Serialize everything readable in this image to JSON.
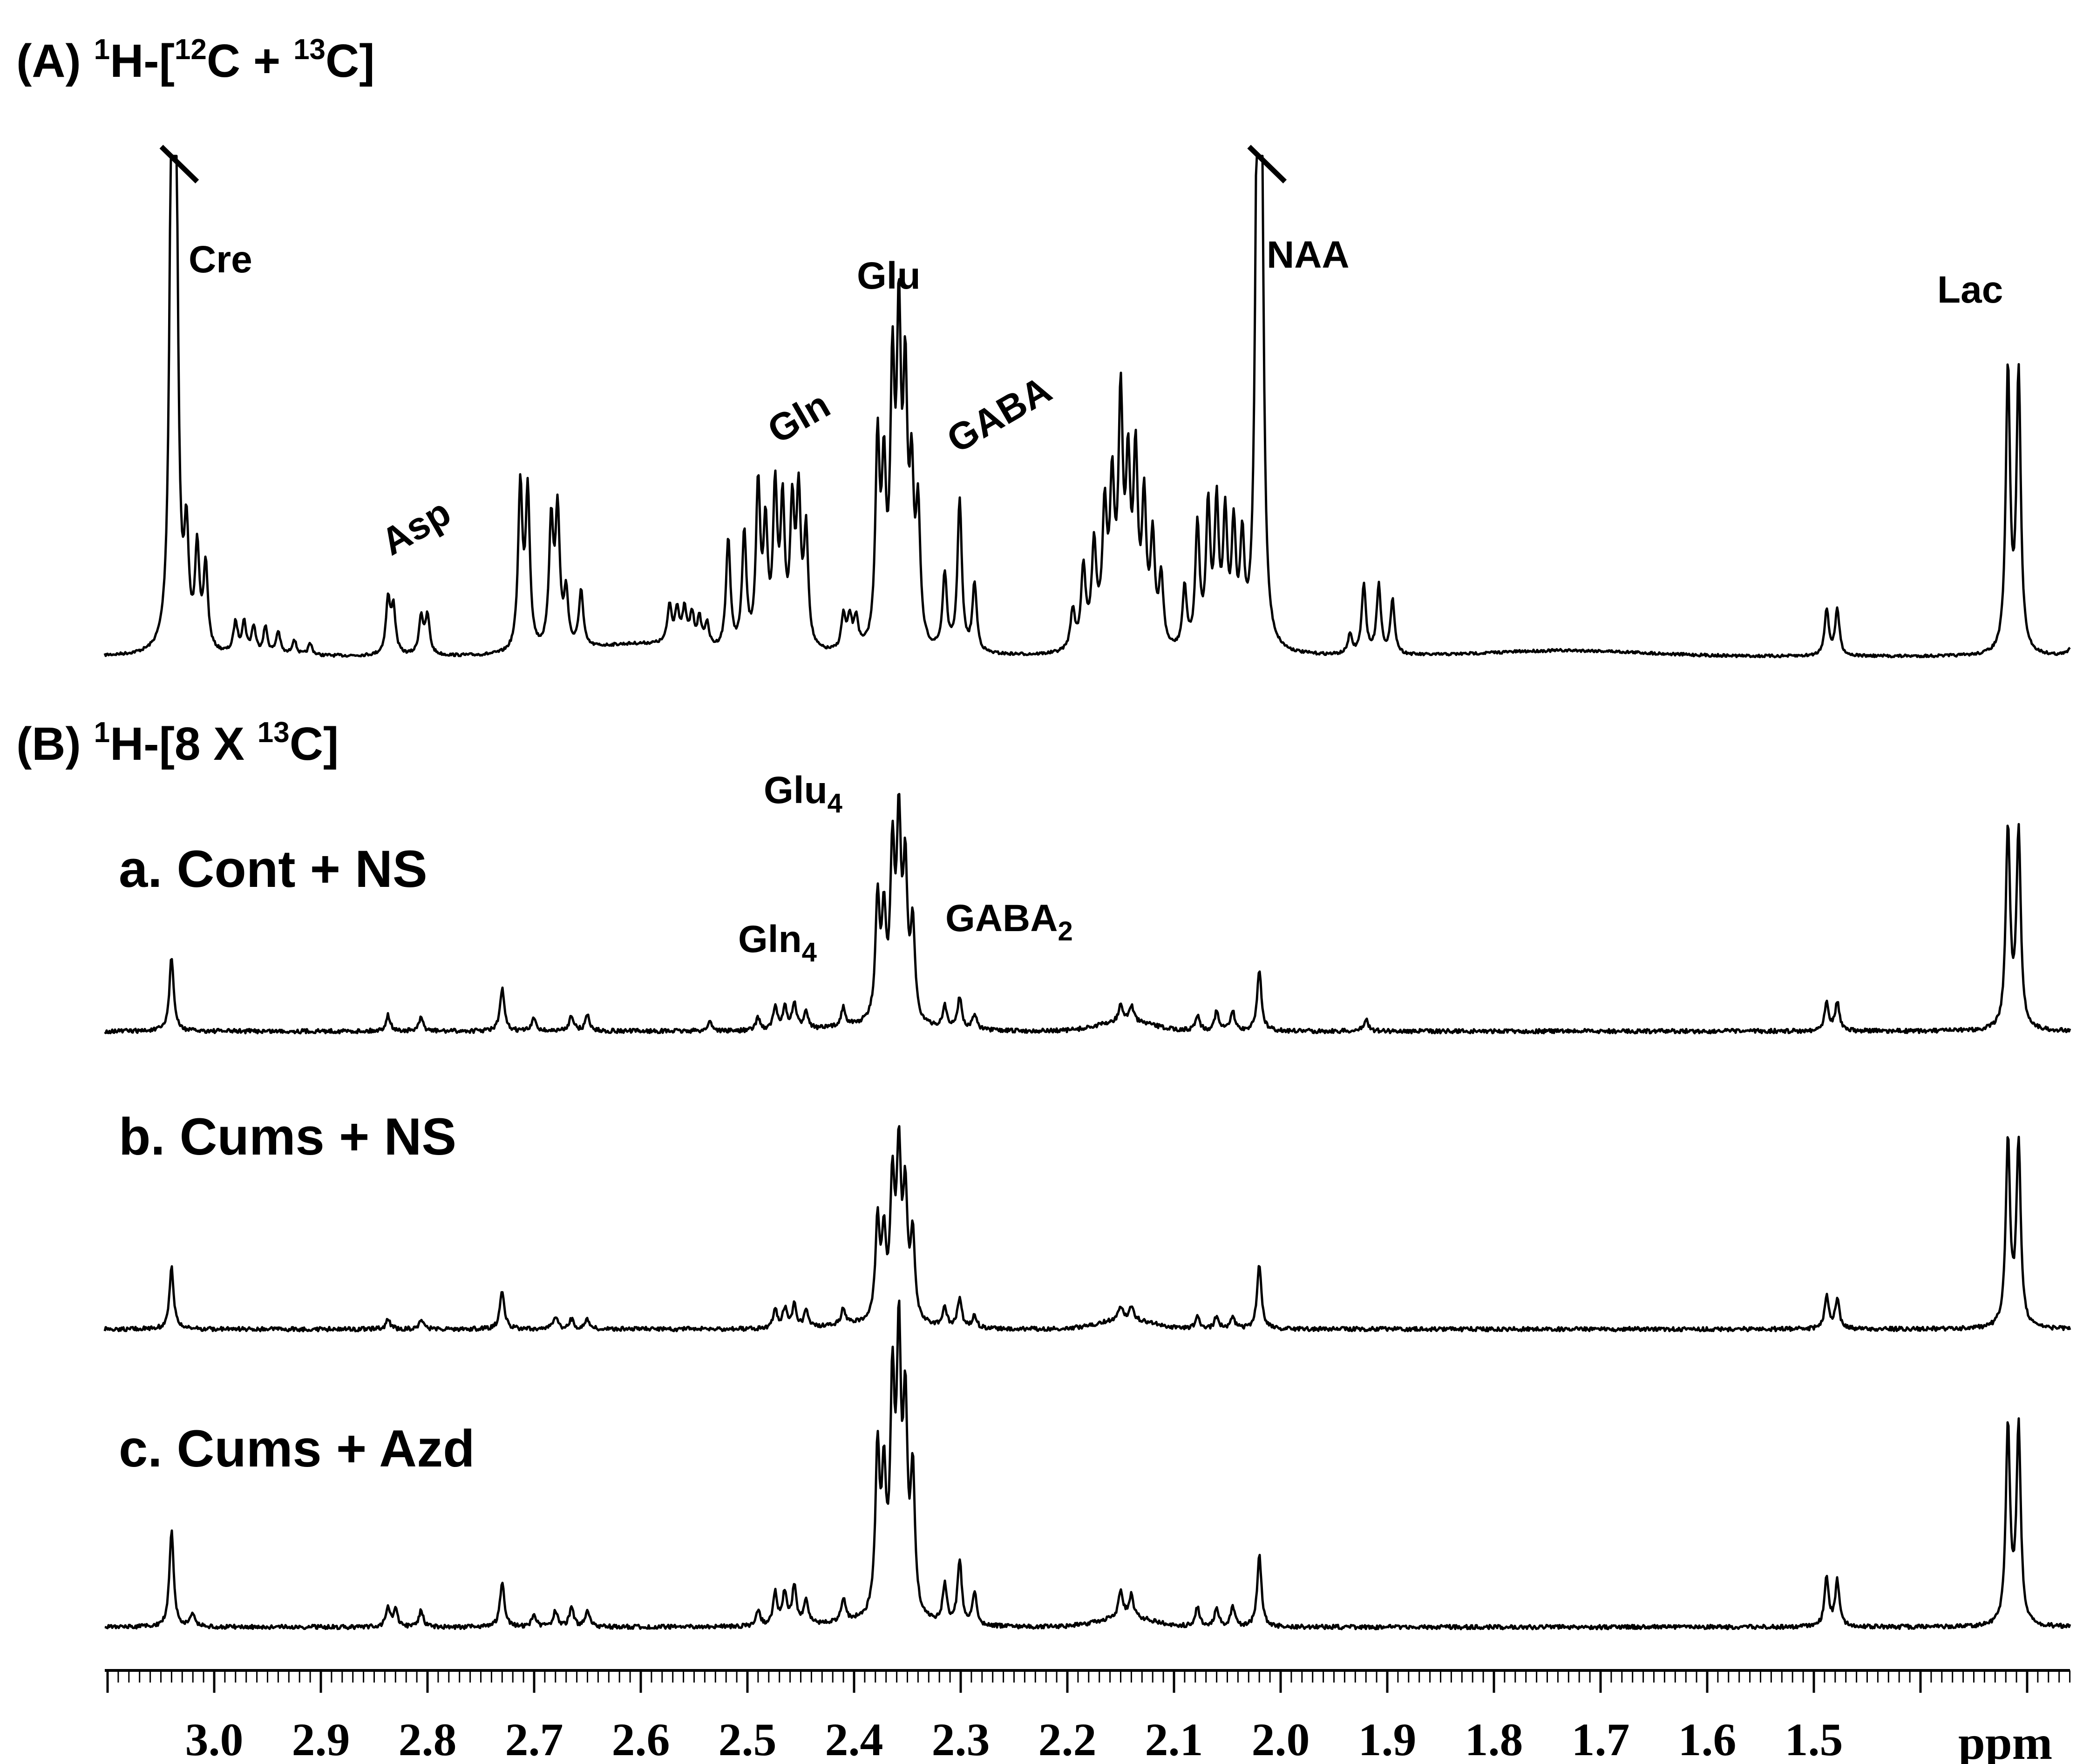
{
  "chart_data": {
    "type": "line",
    "x_axis": {
      "unit_label": "ppm",
      "range": [
        3.05,
        1.25
      ],
      "reversed": true,
      "tick_labels": [
        "3.0",
        "2.9",
        "2.8",
        "2.7",
        "2.6",
        "2.5",
        "2.4",
        "2.3",
        "2.2",
        "2.1",
        "2.0",
        "1.9",
        "1.8",
        "1.7",
        "1.6",
        "1.5"
      ],
      "major_step": 0.1,
      "minor_step": 0.01
    },
    "panels": [
      {
        "id": "A",
        "title": {
          "prefix": "(A) ",
          "sup1": "1",
          "mid1": "H-[",
          "sup2": "12",
          "mid2": "C + ",
          "sup3": "13",
          "suffix": "C]"
        },
        "truncated_peaks": [
          3.04,
          2.02
        ],
        "peaks": [
          {
            "ppm": 3.04,
            "h": 1.25
          },
          {
            "ppm": 3.036,
            "h": 1.25
          },
          {
            "ppm": 3.026,
            "h": 0.28
          },
          {
            "ppm": 3.016,
            "h": 0.26
          },
          {
            "ppm": 3.008,
            "h": 0.22
          },
          {
            "ppm": 2.98,
            "h": 0.08
          },
          {
            "ppm": 2.972,
            "h": 0.08
          },
          {
            "ppm": 2.963,
            "h": 0.07
          },
          {
            "ppm": 2.952,
            "h": 0.07
          },
          {
            "ppm": 2.94,
            "h": 0.06
          },
          {
            "ppm": 2.925,
            "h": 0.04
          },
          {
            "ppm": 2.91,
            "h": 0.03
          },
          {
            "ppm": 2.837,
            "h": 0.14
          },
          {
            "ppm": 2.832,
            "h": 0.12
          },
          {
            "ppm": 2.806,
            "h": 0.1
          },
          {
            "ppm": 2.8,
            "h": 0.1
          },
          {
            "ppm": 2.713,
            "h": 0.43
          },
          {
            "ppm": 2.706,
            "h": 0.41
          },
          {
            "ppm": 2.684,
            "h": 0.33
          },
          {
            "ppm": 2.678,
            "h": 0.35
          },
          {
            "ppm": 2.67,
            "h": 0.14
          },
          {
            "ppm": 2.656,
            "h": 0.15
          },
          {
            "ppm": 2.573,
            "h": 0.1
          },
          {
            "ppm": 2.566,
            "h": 0.09
          },
          {
            "ppm": 2.559,
            "h": 0.09
          },
          {
            "ppm": 2.552,
            "h": 0.08
          },
          {
            "ppm": 2.545,
            "h": 0.07
          },
          {
            "ppm": 2.538,
            "h": 0.06
          },
          {
            "ppm": 2.518,
            "h": 0.29
          },
          {
            "ppm": 2.503,
            "h": 0.3
          },
          {
            "ppm": 2.49,
            "h": 0.42
          },
          {
            "ppm": 2.483,
            "h": 0.3
          },
          {
            "ppm": 2.474,
            "h": 0.4
          },
          {
            "ppm": 2.467,
            "h": 0.36
          },
          {
            "ppm": 2.458,
            "h": 0.35
          },
          {
            "ppm": 2.452,
            "h": 0.38
          },
          {
            "ppm": 2.445,
            "h": 0.3
          },
          {
            "ppm": 2.41,
            "h": 0.09
          },
          {
            "ppm": 2.404,
            "h": 0.08
          },
          {
            "ppm": 2.398,
            "h": 0.08
          },
          {
            "ppm": 2.378,
            "h": 0.52
          },
          {
            "ppm": 2.372,
            "h": 0.42
          },
          {
            "ppm": 2.364,
            "h": 0.67
          },
          {
            "ppm": 2.358,
            "h": 0.78
          },
          {
            "ppm": 2.352,
            "h": 0.63
          },
          {
            "ppm": 2.346,
            "h": 0.4
          },
          {
            "ppm": 2.34,
            "h": 0.34
          },
          {
            "ppm": 2.315,
            "h": 0.2
          },
          {
            "ppm": 2.301,
            "h": 0.4
          },
          {
            "ppm": 2.287,
            "h": 0.18
          },
          {
            "ppm": 2.195,
            "h": 0.1
          },
          {
            "ppm": 2.185,
            "h": 0.2
          },
          {
            "ppm": 2.175,
            "h": 0.24
          },
          {
            "ppm": 2.165,
            "h": 0.31
          },
          {
            "ppm": 2.158,
            "h": 0.36
          },
          {
            "ppm": 2.15,
            "h": 0.58
          },
          {
            "ppm": 2.143,
            "h": 0.4
          },
          {
            "ppm": 2.136,
            "h": 0.45
          },
          {
            "ppm": 2.128,
            "h": 0.35
          },
          {
            "ppm": 2.12,
            "h": 0.27
          },
          {
            "ppm": 2.112,
            "h": 0.18
          },
          {
            "ppm": 2.09,
            "h": 0.16
          },
          {
            "ppm": 2.078,
            "h": 0.32
          },
          {
            "ppm": 2.068,
            "h": 0.36
          },
          {
            "ppm": 2.06,
            "h": 0.36
          },
          {
            "ppm": 2.052,
            "h": 0.33
          },
          {
            "ppm": 2.044,
            "h": 0.3
          },
          {
            "ppm": 2.036,
            "h": 0.26
          },
          {
            "ppm": 2.022,
            "h": 1.25
          },
          {
            "ppm": 2.018,
            "h": 1.25
          },
          {
            "ppm": 1.935,
            "h": 0.05
          },
          {
            "ppm": 1.922,
            "h": 0.18
          },
          {
            "ppm": 1.908,
            "h": 0.18
          },
          {
            "ppm": 1.895,
            "h": 0.14
          },
          {
            "ppm": 1.488,
            "h": 0.12
          },
          {
            "ppm": 1.478,
            "h": 0.12
          },
          {
            "ppm": 1.318,
            "h": 0.74
          },
          {
            "ppm": 1.308,
            "h": 0.73
          },
          {
            "ppm": 1.255,
            "h": 0.1
          }
        ]
      },
      {
        "id": "B",
        "title": {
          "prefix": "(B) ",
          "sup1": "1",
          "mid1": "H-[8 X ",
          "sup2": "13",
          "suffix": "C]"
        },
        "traces": [
          {
            "name": "a. Cont + NS",
            "peaks": [
              {
                "ppm": 3.04,
                "h": 0.23
              },
              {
                "ppm": 2.837,
                "h": 0.05
              },
              {
                "ppm": 2.806,
                "h": 0.04
              },
              {
                "ppm": 2.73,
                "h": 0.13
              },
              {
                "ppm": 2.7,
                "h": 0.04
              },
              {
                "ppm": 2.665,
                "h": 0.05
              },
              {
                "ppm": 2.65,
                "h": 0.05
              },
              {
                "ppm": 2.535,
                "h": 0.03
              },
              {
                "ppm": 2.49,
                "h": 0.04
              },
              {
                "ppm": 2.474,
                "h": 0.07
              },
              {
                "ppm": 2.465,
                "h": 0.07
              },
              {
                "ppm": 2.456,
                "h": 0.08
              },
              {
                "ppm": 2.445,
                "h": 0.06
              },
              {
                "ppm": 2.41,
                "h": 0.06
              },
              {
                "ppm": 2.378,
                "h": 0.37
              },
              {
                "ppm": 2.372,
                "h": 0.3
              },
              {
                "ppm": 2.364,
                "h": 0.5
              },
              {
                "ppm": 2.358,
                "h": 0.58
              },
              {
                "ppm": 2.352,
                "h": 0.45
              },
              {
                "ppm": 2.345,
                "h": 0.3
              },
              {
                "ppm": 2.315,
                "h": 0.07
              },
              {
                "ppm": 2.301,
                "h": 0.1
              },
              {
                "ppm": 2.287,
                "h": 0.05
              },
              {
                "ppm": 2.15,
                "h": 0.05
              },
              {
                "ppm": 2.14,
                "h": 0.05
              },
              {
                "ppm": 2.078,
                "h": 0.05
              },
              {
                "ppm": 2.06,
                "h": 0.06
              },
              {
                "ppm": 2.045,
                "h": 0.06
              },
              {
                "ppm": 2.02,
                "h": 0.19
              },
              {
                "ppm": 1.92,
                "h": 0.04
              },
              {
                "ppm": 1.488,
                "h": 0.09
              },
              {
                "ppm": 1.478,
                "h": 0.09
              },
              {
                "ppm": 1.318,
                "h": 0.62
              },
              {
                "ppm": 1.308,
                "h": 0.61
              }
            ]
          },
          {
            "name": "b. Cums + NS",
            "peaks": [
              {
                "ppm": 3.04,
                "h": 0.19
              },
              {
                "ppm": 2.837,
                "h": 0.03
              },
              {
                "ppm": 2.806,
                "h": 0.03
              },
              {
                "ppm": 2.73,
                "h": 0.12
              },
              {
                "ppm": 2.68,
                "h": 0.04
              },
              {
                "ppm": 2.665,
                "h": 0.03
              },
              {
                "ppm": 2.65,
                "h": 0.03
              },
              {
                "ppm": 2.474,
                "h": 0.06
              },
              {
                "ppm": 2.465,
                "h": 0.06
              },
              {
                "ppm": 2.456,
                "h": 0.07
              },
              {
                "ppm": 2.445,
                "h": 0.05
              },
              {
                "ppm": 2.41,
                "h": 0.05
              },
              {
                "ppm": 2.378,
                "h": 0.3
              },
              {
                "ppm": 2.372,
                "h": 0.24
              },
              {
                "ppm": 2.364,
                "h": 0.41
              },
              {
                "ppm": 2.358,
                "h": 0.5
              },
              {
                "ppm": 2.352,
                "h": 0.38
              },
              {
                "ppm": 2.345,
                "h": 0.26
              },
              {
                "ppm": 2.315,
                "h": 0.06
              },
              {
                "ppm": 2.301,
                "h": 0.09
              },
              {
                "ppm": 2.287,
                "h": 0.04
              },
              {
                "ppm": 2.15,
                "h": 0.04
              },
              {
                "ppm": 2.14,
                "h": 0.04
              },
              {
                "ppm": 2.078,
                "h": 0.04
              },
              {
                "ppm": 2.06,
                "h": 0.04
              },
              {
                "ppm": 2.045,
                "h": 0.04
              },
              {
                "ppm": 2.02,
                "h": 0.2
              },
              {
                "ppm": 1.488,
                "h": 0.1
              },
              {
                "ppm": 1.478,
                "h": 0.09
              },
              {
                "ppm": 1.318,
                "h": 0.58
              },
              {
                "ppm": 1.308,
                "h": 0.57
              }
            ]
          },
          {
            "name": "c. Cums + Azd",
            "peaks": [
              {
                "ppm": 3.04,
                "h": 0.3
              },
              {
                "ppm": 3.02,
                "h": 0.04
              },
              {
                "ppm": 2.837,
                "h": 0.06
              },
              {
                "ppm": 2.83,
                "h": 0.05
              },
              {
                "ppm": 2.806,
                "h": 0.05
              },
              {
                "ppm": 2.73,
                "h": 0.14
              },
              {
                "ppm": 2.7,
                "h": 0.04
              },
              {
                "ppm": 2.68,
                "h": 0.05
              },
              {
                "ppm": 2.665,
                "h": 0.06
              },
              {
                "ppm": 2.65,
                "h": 0.05
              },
              {
                "ppm": 2.49,
                "h": 0.05
              },
              {
                "ppm": 2.474,
                "h": 0.1
              },
              {
                "ppm": 2.465,
                "h": 0.1
              },
              {
                "ppm": 2.456,
                "h": 0.12
              },
              {
                "ppm": 2.445,
                "h": 0.08
              },
              {
                "ppm": 2.41,
                "h": 0.07
              },
              {
                "ppm": 2.378,
                "h": 0.5
              },
              {
                "ppm": 2.372,
                "h": 0.4
              },
              {
                "ppm": 2.364,
                "h": 0.67
              },
              {
                "ppm": 2.358,
                "h": 0.8
              },
              {
                "ppm": 2.352,
                "h": 0.6
              },
              {
                "ppm": 2.345,
                "h": 0.43
              },
              {
                "ppm": 2.315,
                "h": 0.12
              },
              {
                "ppm": 2.301,
                "h": 0.2
              },
              {
                "ppm": 2.287,
                "h": 0.1
              },
              {
                "ppm": 2.15,
                "h": 0.08
              },
              {
                "ppm": 2.14,
                "h": 0.07
              },
              {
                "ppm": 2.078,
                "h": 0.06
              },
              {
                "ppm": 2.06,
                "h": 0.06
              },
              {
                "ppm": 2.045,
                "h": 0.06
              },
              {
                "ppm": 2.02,
                "h": 0.22
              },
              {
                "ppm": 1.488,
                "h": 0.15
              },
              {
                "ppm": 1.478,
                "h": 0.14
              },
              {
                "ppm": 1.318,
                "h": 0.61
              },
              {
                "ppm": 1.308,
                "h": 0.61
              }
            ]
          }
        ]
      }
    ],
    "annotations_A": [
      {
        "text": "Cre",
        "ppm": 3.04
      },
      {
        "text": "Asp",
        "ppm": 2.81
      },
      {
        "text": "Gln",
        "ppm": 2.46
      },
      {
        "text": "Glu",
        "ppm": 2.36
      },
      {
        "text": "GABA",
        "ppm": 2.3
      },
      {
        "text": "NAA",
        "ppm": 2.02
      },
      {
        "text": "Lac",
        "ppm": 1.31
      }
    ],
    "annotations_B": [
      {
        "base": "Glu",
        "sub": "4",
        "ppm": 2.36
      },
      {
        "base": "Gln",
        "sub": "4",
        "ppm": 2.46
      },
      {
        "base": "GABA",
        "sub": "2",
        "ppm": 2.3
      }
    ]
  }
}
